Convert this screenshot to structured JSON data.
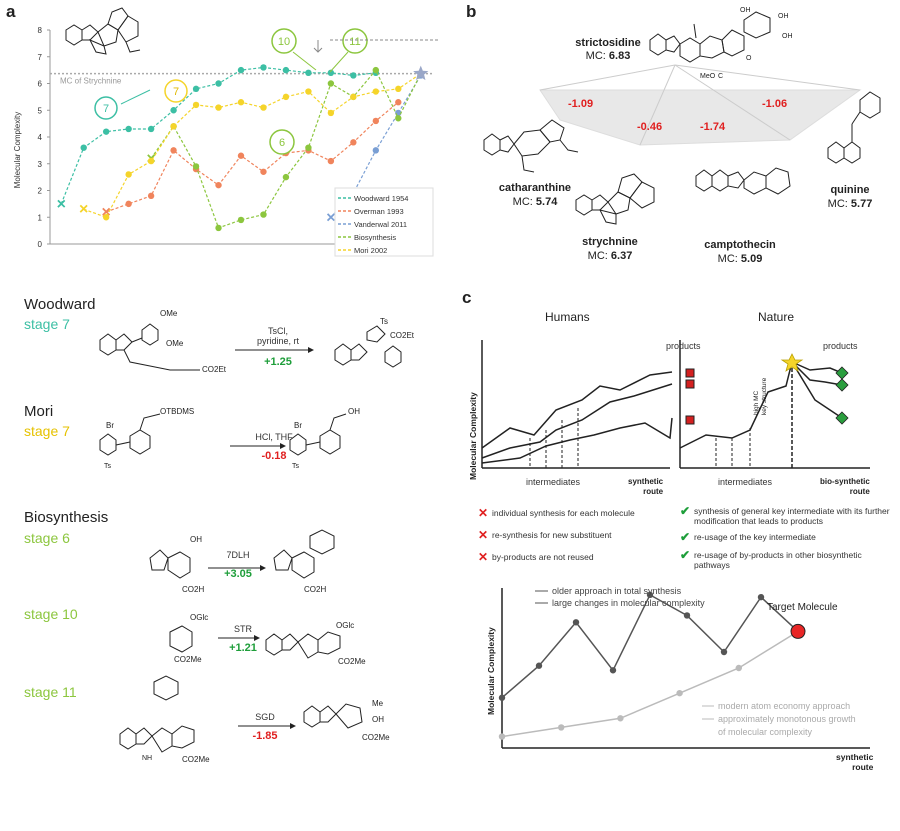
{
  "panels": {
    "a": "a",
    "b": "b",
    "c": "c"
  },
  "chart_data": {
    "type": "line",
    "ylabel": "Molecular Complexity",
    "yticks": [
      "0",
      "1",
      "2",
      "3",
      "4",
      "5",
      "6",
      "7",
      "8"
    ],
    "ylim": [
      0,
      8
    ],
    "threshold": {
      "label": "MC of Strychnine",
      "value": 6.37
    },
    "start_marker": "×",
    "step_labels": [
      {
        "text": "7",
        "series": "Woodward 1954"
      },
      {
        "text": "7",
        "series": "Mori 2002"
      },
      {
        "text": "10",
        "series": "Biosynthesis"
      },
      {
        "text": "11",
        "series": "Biosynthesis"
      },
      {
        "text": "6",
        "series": "Biosynthesis"
      }
    ],
    "series": [
      {
        "name": "Woodward 1954",
        "color": "#3cbfa4",
        "x": [
          1,
          2,
          3,
          4,
          5,
          6,
          7,
          8,
          9,
          10,
          11,
          12,
          13,
          14,
          15
        ],
        "values": [
          1.5,
          3.6,
          4.2,
          4.3,
          4.3,
          5.0,
          5.8,
          6.0,
          6.5,
          6.6,
          6.5,
          6.4,
          6.4,
          6.3,
          6.4
        ]
      },
      {
        "name": "Overman 1993",
        "color": "#f0845c",
        "x": [
          3,
          4,
          5,
          6,
          7,
          8,
          9,
          10,
          11,
          12,
          13,
          14,
          15,
          16
        ],
        "values": [
          1.2,
          1.5,
          1.8,
          3.5,
          2.8,
          2.2,
          3.3,
          2.7,
          3.4,
          3.5,
          3.1,
          3.8,
          4.6,
          5.3
        ]
      },
      {
        "name": "Vanderwal 2011",
        "color": "#7a9fd4",
        "x": [
          13,
          14,
          15,
          16,
          17
        ],
        "values": [
          1.0,
          1.9,
          3.5,
          4.9,
          6.3
        ]
      },
      {
        "name": "Biosynthesis",
        "color": "#8cc63e",
        "x": [
          5,
          6,
          7,
          8,
          9,
          10,
          11,
          12,
          13,
          14,
          15,
          16,
          17
        ],
        "values": [
          3.2,
          4.4,
          2.9,
          0.6,
          0.9,
          1.1,
          2.5,
          3.6,
          6.0,
          5.5,
          6.5,
          4.7,
          6.37
        ]
      },
      {
        "name": "Mori 2002",
        "color": "#f5d42a",
        "x": [
          2,
          3,
          4,
          5,
          6,
          7,
          8,
          9,
          10,
          11,
          12,
          13,
          14,
          15,
          16,
          17
        ],
        "values": [
          1.3,
          1.0,
          2.6,
          3.1,
          4.4,
          5.2,
          5.1,
          5.3,
          5.1,
          5.5,
          5.7,
          4.9,
          5.5,
          5.7,
          5.8,
          6.37
        ]
      }
    ]
  },
  "panel_b": {
    "center": {
      "name": "strictosidine",
      "mc_label": "MC:",
      "mc": "6.83"
    },
    "deltas": [
      "-1.09",
      "-0.46",
      "-1.74",
      "-1.06"
    ],
    "products": [
      {
        "name": "catharanthine",
        "mc_label": "MC:",
        "mc": "5.74"
      },
      {
        "name": "strychnine",
        "mc_label": "MC:",
        "mc": "6.37"
      },
      {
        "name": "camptothecin",
        "mc_label": "MC:",
        "mc": "5.09"
      },
      {
        "name": "quinine",
        "mc_label": "MC:",
        "mc": "5.77"
      }
    ]
  },
  "reactions": {
    "woodward": {
      "title": "Woodward",
      "stage": "stage 7",
      "reagent": "TsCl,\npyridine, rt",
      "delta": "+1.25",
      "color": "#3cbfa4"
    },
    "mori": {
      "title": "Mori",
      "stage": "stage 7",
      "reagent": "HCl, THF",
      "delta": "-0.18",
      "color": "#f5d42a"
    },
    "bio": {
      "title": "Biosynthesis",
      "color": "#8cc63e",
      "stages": [
        {
          "stage": "stage 6",
          "reagent": "7DLH",
          "delta": "+3.05"
        },
        {
          "stage": "stage 10",
          "reagent": "STR",
          "delta": "+1.21"
        },
        {
          "stage": "stage 11",
          "reagent": "SGD",
          "delta": "-1.85"
        }
      ]
    },
    "molecule_labels": {
      "ome1": "OMe",
      "ome2": "OMe",
      "ts": "Ts",
      "co2et": "CO2Et",
      "otbdms": "OTBDMS",
      "br": "Br",
      "oh": "OH",
      "ogic": "OGlc",
      "co2h": "CO2H",
      "co2me": "CO2Me",
      "me": "Me",
      "nh": "NH"
    }
  },
  "panel_c": {
    "humans": {
      "title": "Humans",
      "products": "products",
      "xlabel": "intermediates",
      "axis": "synthetic\nroute"
    },
    "nature": {
      "title": "Nature",
      "products": "products",
      "xlabel": "intermediates",
      "axis": "bio-synthetic\nroute",
      "key": "high MC\nkey structure"
    },
    "ylabel": "Molecular Complexity",
    "cons": [
      "individual synthesis for each molecule",
      "re-synthesis for new substituent",
      "by-products are not reused"
    ],
    "pros": [
      "synthesis of general key intermediate with its further modification that leads to products",
      "re-usage of the key intermediate",
      "re-usage of by-products in other biosynthetic pathways"
    ],
    "bottom": {
      "legend_dark": [
        "older approach in total synthesis",
        "large changes in molecular complexity"
      ],
      "legend_light": [
        "modern atom economy approach",
        "approximately monotonous growth of molecular complexity"
      ],
      "target": "Target Molecule",
      "ylabel": "Molecular Complexity",
      "xlabel": "synthetic\nroute",
      "dark_values": [
        2.2,
        3.6,
        5.5,
        3.4,
        6.7,
        5.8,
        4.2,
        6.6,
        5.1
      ],
      "light_values": [
        0.5,
        0.9,
        1.3,
        2.4,
        3.5,
        5.1
      ],
      "dark_color": "#555555",
      "light_color": "#bbbbbb",
      "target_color": "#e82626"
    }
  }
}
